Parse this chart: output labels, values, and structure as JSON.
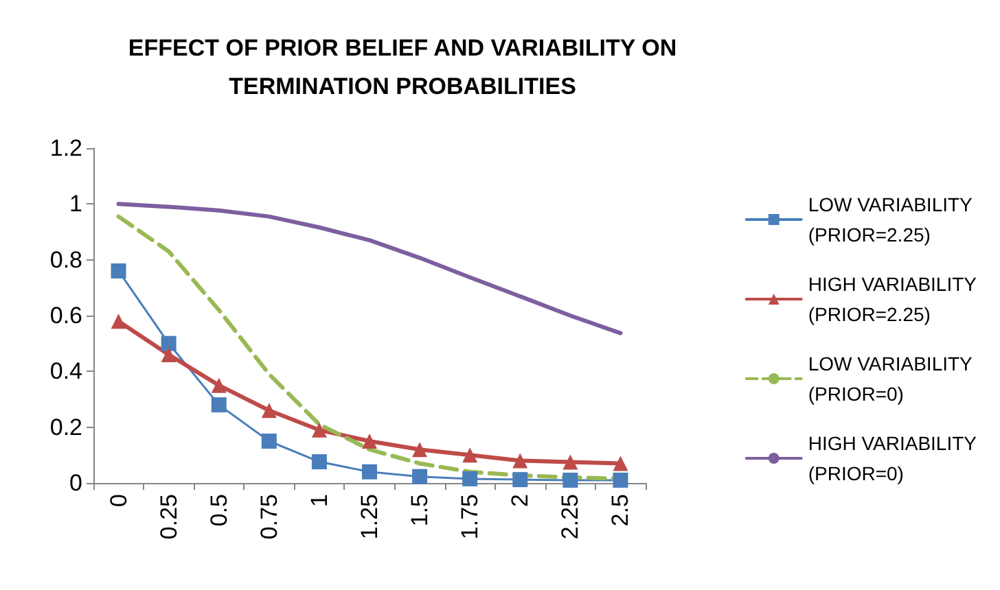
{
  "chart_data": {
    "type": "line",
    "title": "EFFECT OF PRIOR BELIEF AND VARIABILITY ON\nTERMINATION PROBABILITIES",
    "categories": [
      "0",
      "0.25",
      "0.5",
      "0.75",
      "1",
      "1.25",
      "1.5",
      "1.75",
      "2",
      "2.25",
      "2.5"
    ],
    "series": [
      {
        "name": "LOW VARIABILITY\n(PRIOR=2.25)",
        "color": "#4a7ebb",
        "marker": "square",
        "line_style": "solid",
        "values": [
          0.76,
          0.5,
          0.28,
          0.15,
          0.076,
          0.04,
          0.023,
          0.015,
          0.012,
          0.01,
          0.01
        ]
      },
      {
        "name": "HIGH VARIABILITY\n(PRIOR=2.25)",
        "color": "#be4b48",
        "marker": "triangle",
        "line_style": "solid",
        "values": [
          0.58,
          0.46,
          0.35,
          0.26,
          0.19,
          0.15,
          0.12,
          0.1,
          0.08,
          0.075,
          0.07
        ]
      },
      {
        "name": "LOW VARIABILITY\n(PRIOR=0)",
        "color": "#98b954",
        "marker": "none",
        "line_style": "dashed",
        "values": [
          0.955,
          0.83,
          0.62,
          0.39,
          0.21,
          0.12,
          0.07,
          0.04,
          0.027,
          0.02,
          0.015
        ]
      },
      {
        "name": "HIGH VARIABILITY\n(PRIOR=0)",
        "color": "#7d5fa0",
        "marker": "none",
        "line_style": "solid",
        "values": [
          1.0,
          0.99,
          0.977,
          0.955,
          0.916,
          0.87,
          0.807,
          0.737,
          0.669,
          0.6,
          0.537
        ]
      }
    ],
    "ylim": [
      0,
      1.2
    ],
    "yticks": [
      0,
      0.2,
      0.4,
      0.6,
      0.8,
      1,
      1.2
    ],
    "grid": false,
    "legend": "right"
  }
}
